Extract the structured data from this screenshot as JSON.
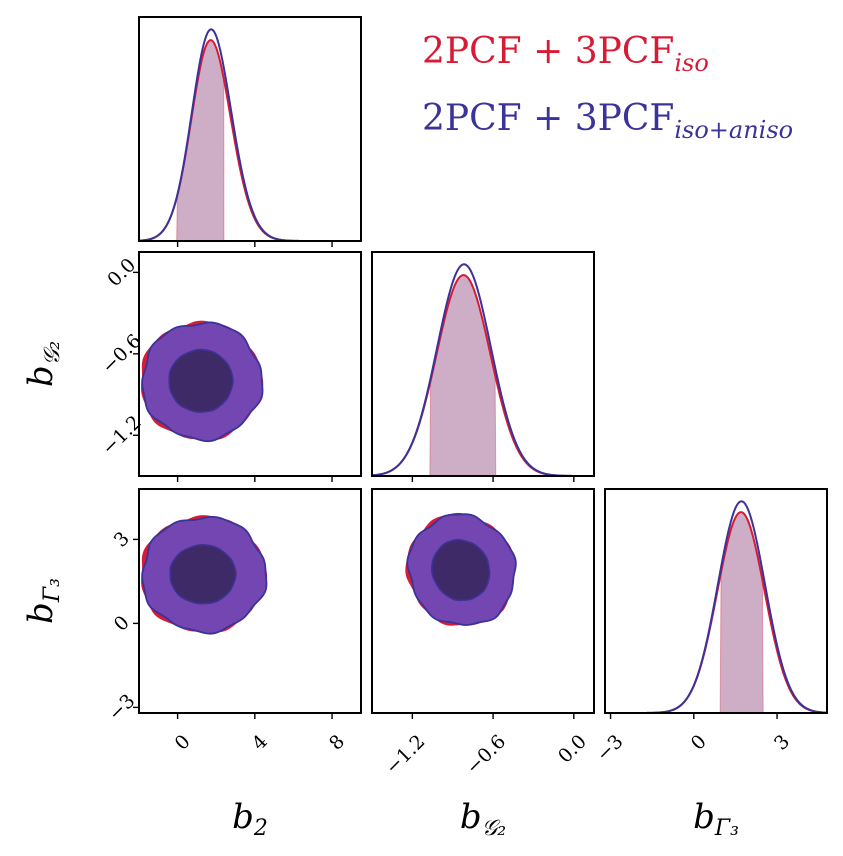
{
  "chart_data": {
    "type": "corner",
    "parameters": [
      {
        "key": "b2",
        "label": "b",
        "sub": "2",
        "range": [
          -2,
          9.5
        ],
        "ticks": [
          0,
          4,
          8
        ],
        "tick_labels": [
          "0",
          "4",
          "8"
        ],
        "mean": 1.1,
        "sigma": 1.25,
        "skew": 0.9,
        "hpd": [
          -0.05,
          2.4
        ]
      },
      {
        "key": "bG2",
        "label": "b",
        "sub": "𝒢₂",
        "range": [
          -1.5,
          0.15
        ],
        "ticks": [
          -1.2,
          -0.6,
          0.0
        ],
        "tick_labels": [
          "−1.2",
          "−0.6",
          "0.0"
        ],
        "mean": -0.82,
        "sigma": 0.2,
        "skew": 0,
        "hpd": [
          -1.07,
          -0.58
        ]
      },
      {
        "key": "bGamma3",
        "label": "b",
        "sub": "Γ₃",
        "range": [
          -3.2,
          4.8
        ],
        "ticks": [
          -3,
          0,
          3
        ],
        "tick_labels": [
          "−3",
          "0",
          "3"
        ],
        "mean": 1.7,
        "sigma": 0.85,
        "skew": 0,
        "hpd": [
          0.95,
          2.5
        ]
      }
    ],
    "series": [
      {
        "name": "2PCF + 3PCF",
        "name_sub": "iso",
        "color": "#d81b35"
      },
      {
        "name": "2PCF + 3PCF",
        "name_sub": "iso+aniso",
        "color": "#3a3399"
      }
    ],
    "contours": [
      {
        "x": "b2",
        "y": "bG2",
        "center": [
          1.2,
          -0.8
        ],
        "outer": [
          3.1,
          0.43
        ],
        "inner": [
          1.65,
          0.23
        ],
        "rho": 0
      },
      {
        "x": "b2",
        "y": "bGamma3",
        "center": [
          1.3,
          1.75
        ],
        "outer": [
          3.2,
          2.05
        ],
        "inner": [
          1.7,
          1.05
        ],
        "rho": 0
      },
      {
        "x": "bG2",
        "y": "bGamma3",
        "center": [
          -0.84,
          1.9
        ],
        "outer": [
          0.39,
          2.0
        ],
        "inner": [
          0.21,
          1.1
        ],
        "rho": -0.6
      }
    ],
    "colors": {
      "inner_fill": "#3e2a66",
      "outer_fill": "#7446b2",
      "hpd_fill": "#c9a4c0"
    },
    "legend_placement": "top-right",
    "grid": false
  }
}
